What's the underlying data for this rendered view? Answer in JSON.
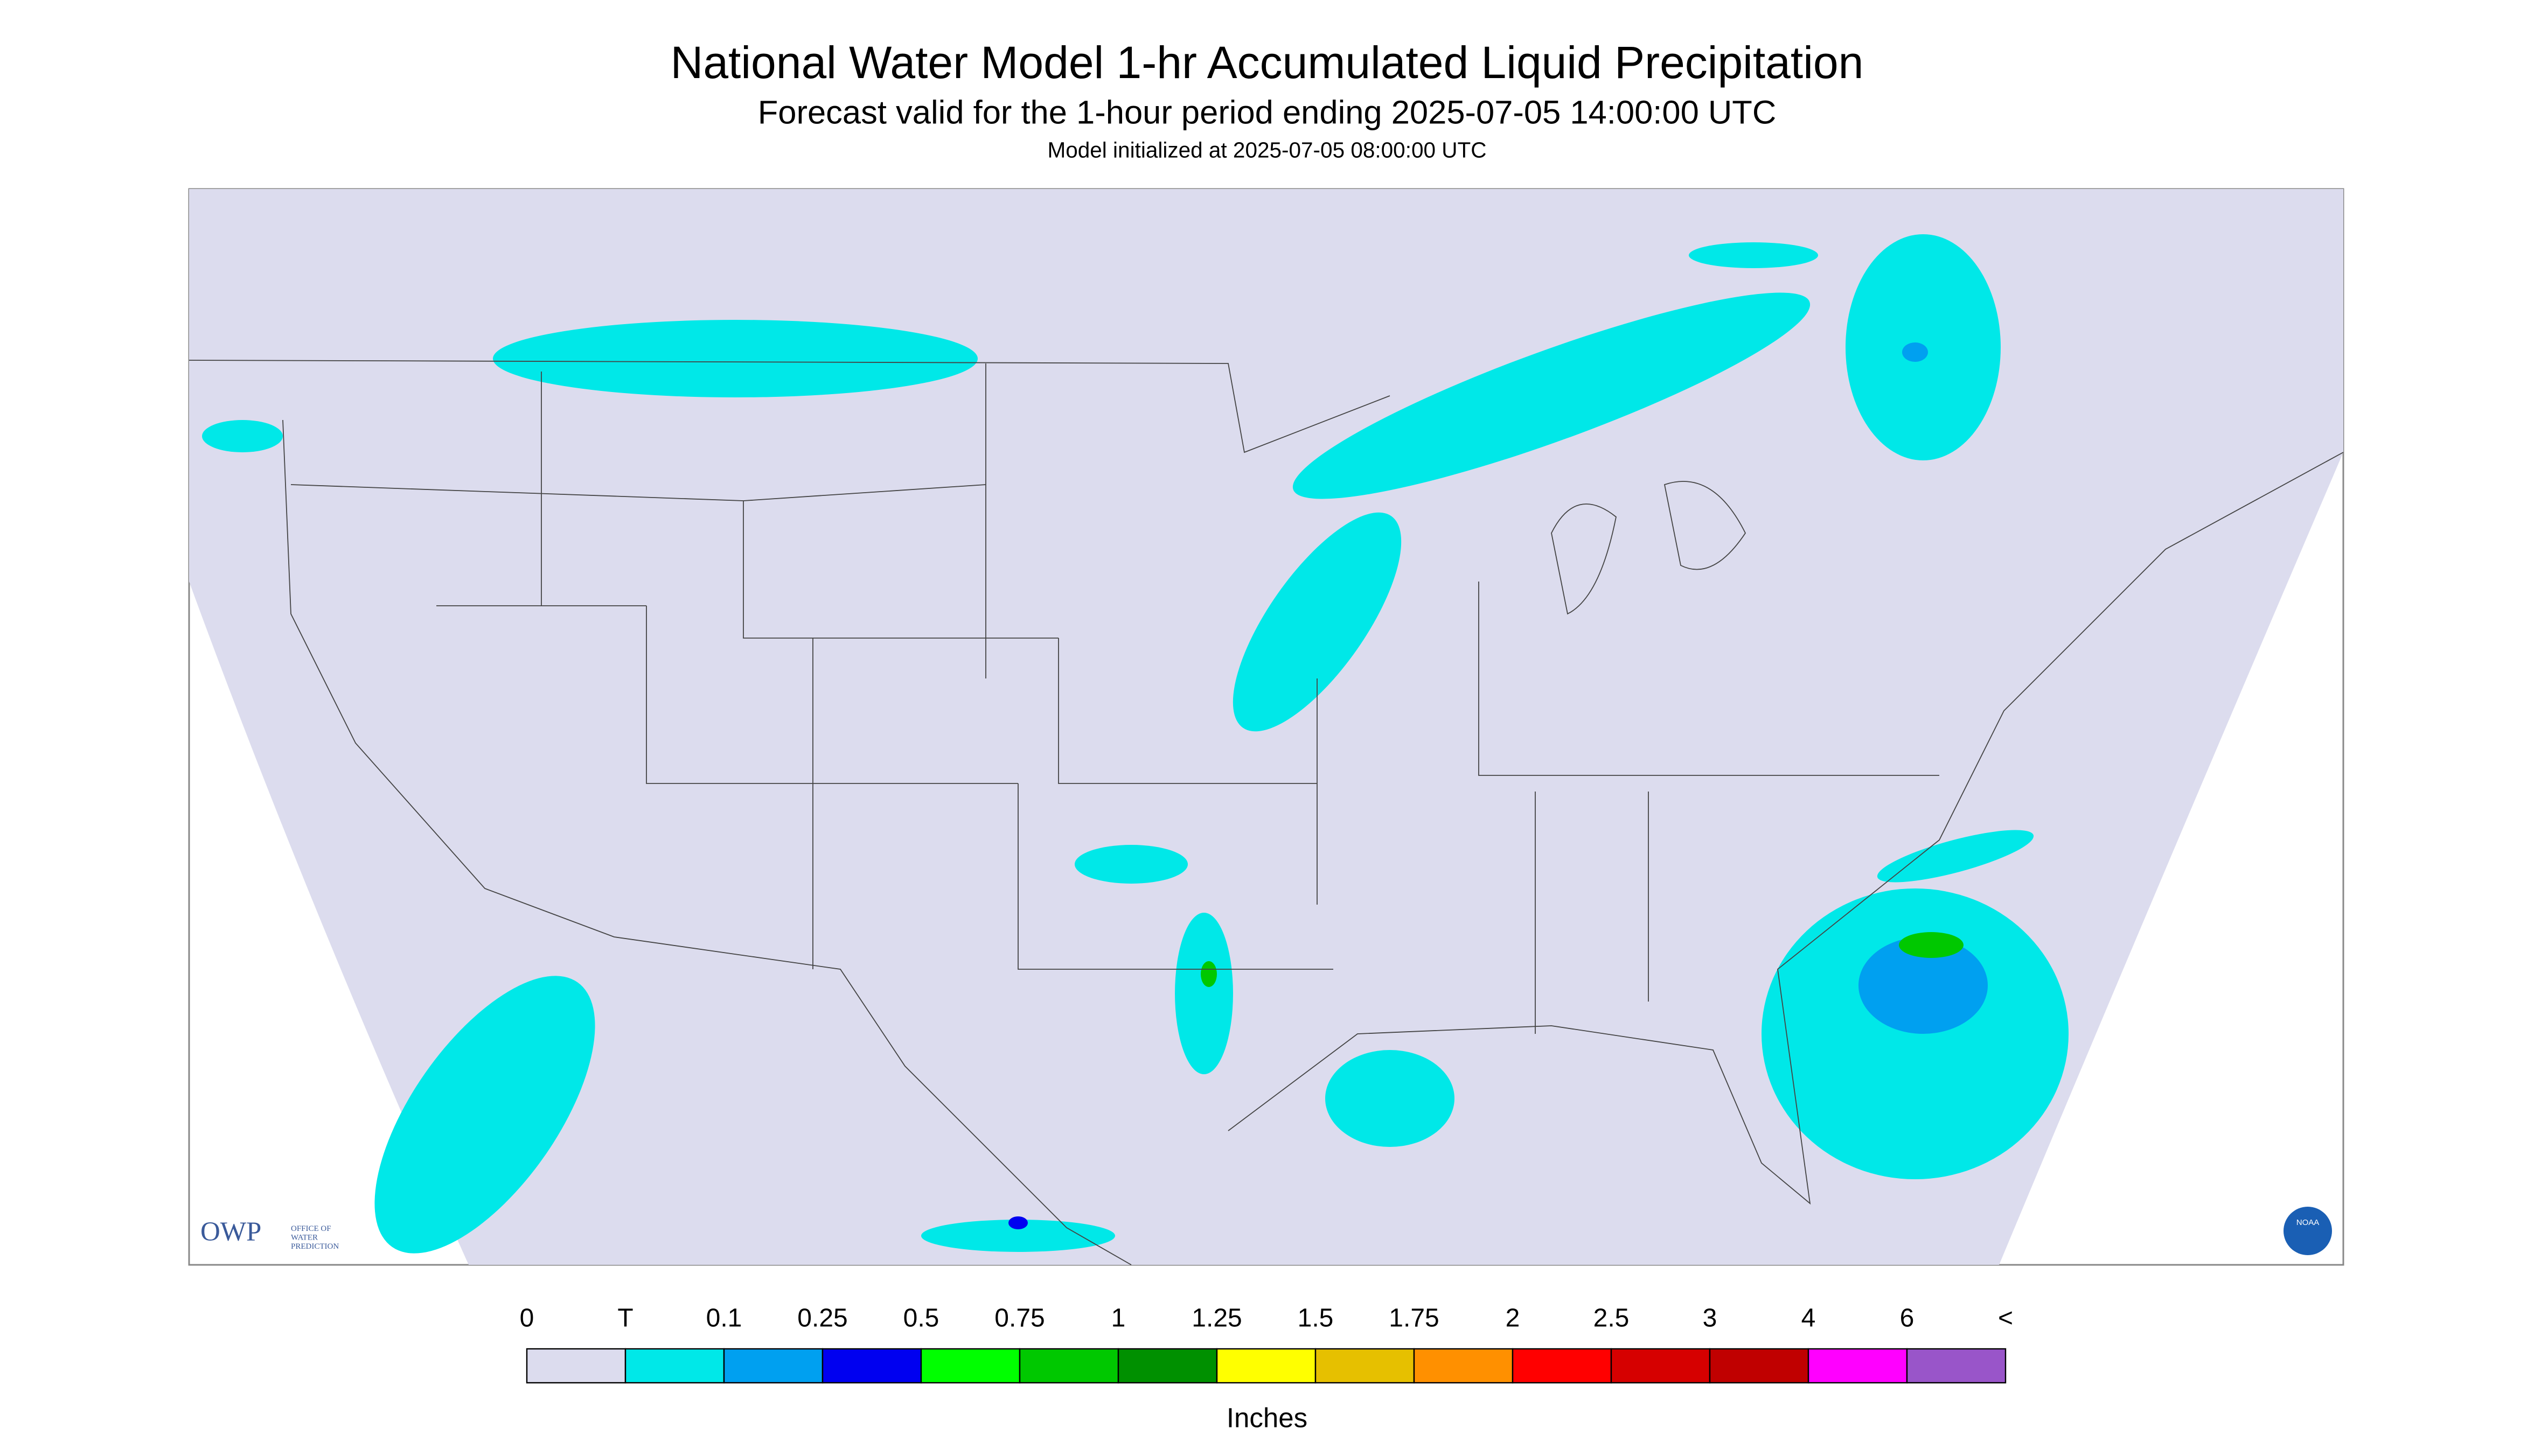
{
  "header": {
    "title": "National Water Model 1-hr Accumulated Liquid Precipitation",
    "subtitle": "Forecast valid for the 1-hour period ending 2025-07-05 14:00:00 UTC",
    "initialized": "Model initialized at 2025-07-05 08:00:00 UTC"
  },
  "legend": {
    "labels": [
      "0",
      "T",
      "0.1",
      "0.25",
      "0.5",
      "0.75",
      "1",
      "1.25",
      "1.5",
      "1.75",
      "2",
      "2.5",
      "3",
      "4",
      "6",
      "<"
    ],
    "colors": [
      "#dcdcee",
      "#00e8e8",
      "#00a0f0",
      "#0000f0",
      "#00ff00",
      "#00c800",
      "#009000",
      "#ffff00",
      "#e6c000",
      "#ff9000",
      "#ff0000",
      "#d60000",
      "#c00000",
      "#ff00ff",
      "#9955c9"
    ],
    "units": "Inches"
  },
  "logos": {
    "owp": "OWP",
    "owp_lines": [
      "OFFICE OF",
      "WATER",
      "PREDICTION"
    ],
    "noaa": "NOAA"
  }
}
